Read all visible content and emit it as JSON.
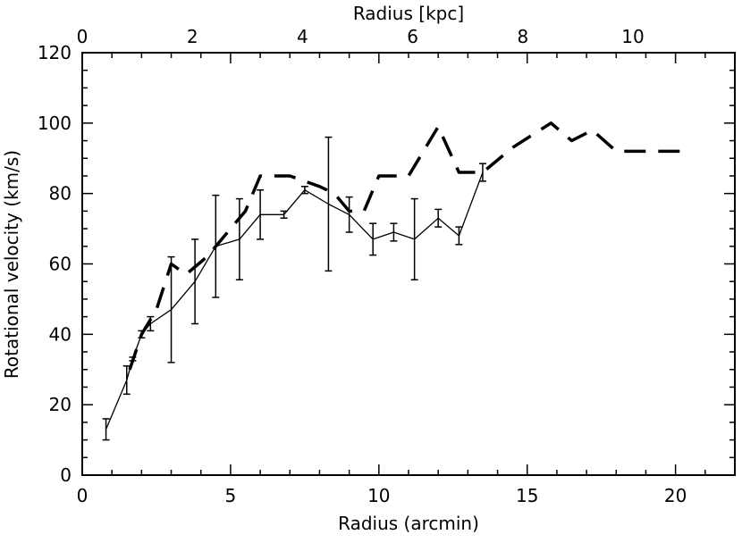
{
  "chart_data": {
    "type": "line",
    "xlabel": "Radius (arcmin)",
    "ylabel": "Rotational velocity (km/s)",
    "x2label": "Radius [kpc]",
    "xlim": [
      0,
      22
    ],
    "ylim": [
      0,
      120
    ],
    "x2lim": [
      0,
      11.85
    ],
    "xticks": [
      0,
      5,
      10,
      15,
      20
    ],
    "yticks": [
      0,
      20,
      40,
      60,
      80,
      100,
      120
    ],
    "x2ticks": [
      0,
      2,
      4,
      6,
      8,
      10
    ],
    "grid": false,
    "series": [
      {
        "style": "solid",
        "color": "#000000",
        "x": [
          0.8,
          1.5,
          1.7,
          2.0,
          2.3,
          3.0,
          3.8,
          4.5,
          5.3,
          6.0,
          6.8,
          7.5,
          8.3,
          9.0,
          9.8,
          10.5,
          11.2,
          12.0,
          12.7,
          13.5
        ],
        "y": [
          13,
          27,
          33,
          40,
          43,
          47,
          55,
          65,
          67,
          74,
          74,
          81,
          77,
          74,
          67,
          69,
          67,
          73,
          68,
          86
        ],
        "err": [
          3,
          4,
          0.5,
          1,
          2,
          15,
          12,
          14.5,
          11.5,
          7,
          1,
          1,
          19,
          5,
          4.5,
          2.5,
          11.5,
          2.5,
          2.5,
          2.5
        ]
      },
      {
        "style": "dashed",
        "color": "#000000",
        "x": [
          1.6,
          2.0,
          2.5,
          3.0,
          3.5,
          4.2,
          5.0,
          5.5,
          6.0,
          7.0,
          8.0,
          8.5,
          9.0,
          9.5,
          10.0,
          11.0,
          12.0,
          12.7,
          13.5,
          14.5,
          15.8,
          16.5,
          17.2,
          18.0,
          20.2
        ],
        "y": [
          30,
          40,
          47,
          60,
          57,
          62,
          70,
          75,
          85,
          85,
          82,
          80,
          75,
          75,
          85,
          85,
          99,
          86,
          86,
          93,
          100,
          95,
          98,
          92,
          92
        ]
      }
    ]
  }
}
